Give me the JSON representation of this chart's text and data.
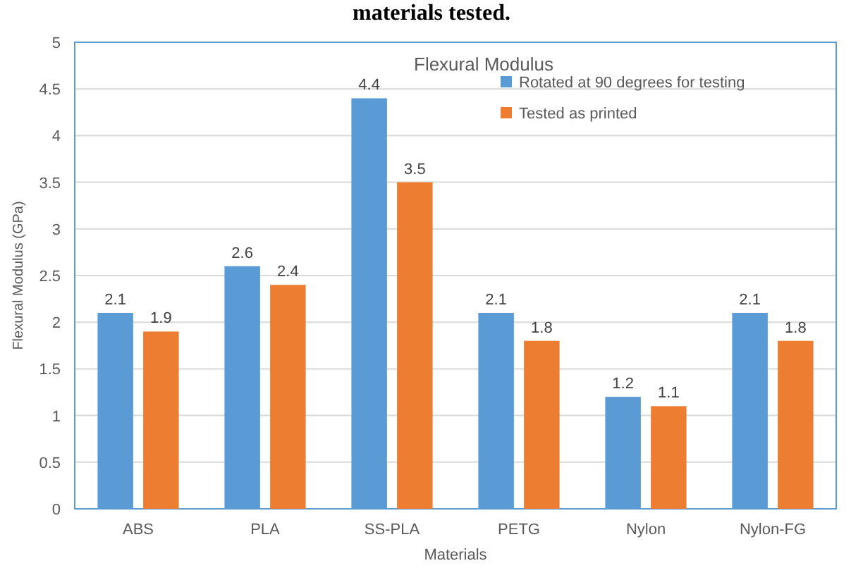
{
  "chart_data": {
    "type": "bar",
    "title": "Flexural Modulus",
    "xlabel": "Materials",
    "ylabel": "Flexural Modulus (GPa)",
    "annotations": [
      "materials tested."
    ],
    "categories": [
      "ABS",
      "PLA",
      "SS-PLA",
      "PETG",
      "Nylon",
      "Nylon-FG"
    ],
    "series": [
      {
        "name": "Rotated at 90 degrees for testing",
        "color": "#5b9bd5",
        "values": [
          2.1,
          2.6,
          4.4,
          2.1,
          1.2,
          2.1
        ]
      },
      {
        "name": "Tested as printed",
        "color": "#ed7d31",
        "values": [
          1.9,
          2.4,
          3.5,
          1.8,
          1.1,
          1.8
        ]
      }
    ],
    "ylim": [
      0,
      5
    ],
    "yticks": [
      0,
      {
        "value": 0.5,
        "label": "0.5"
      },
      1,
      {
        "value": 1.5,
        "label": "1.5"
      },
      2,
      {
        "value": 2.5,
        "label": "2.5"
      },
      3,
      {
        "value": 3.5,
        "label": "3.5"
      },
      4,
      {
        "value": 4.5,
        "label": "4.5"
      },
      5
    ],
    "grid": "y",
    "legend": "top right",
    "data_labels": true
  }
}
